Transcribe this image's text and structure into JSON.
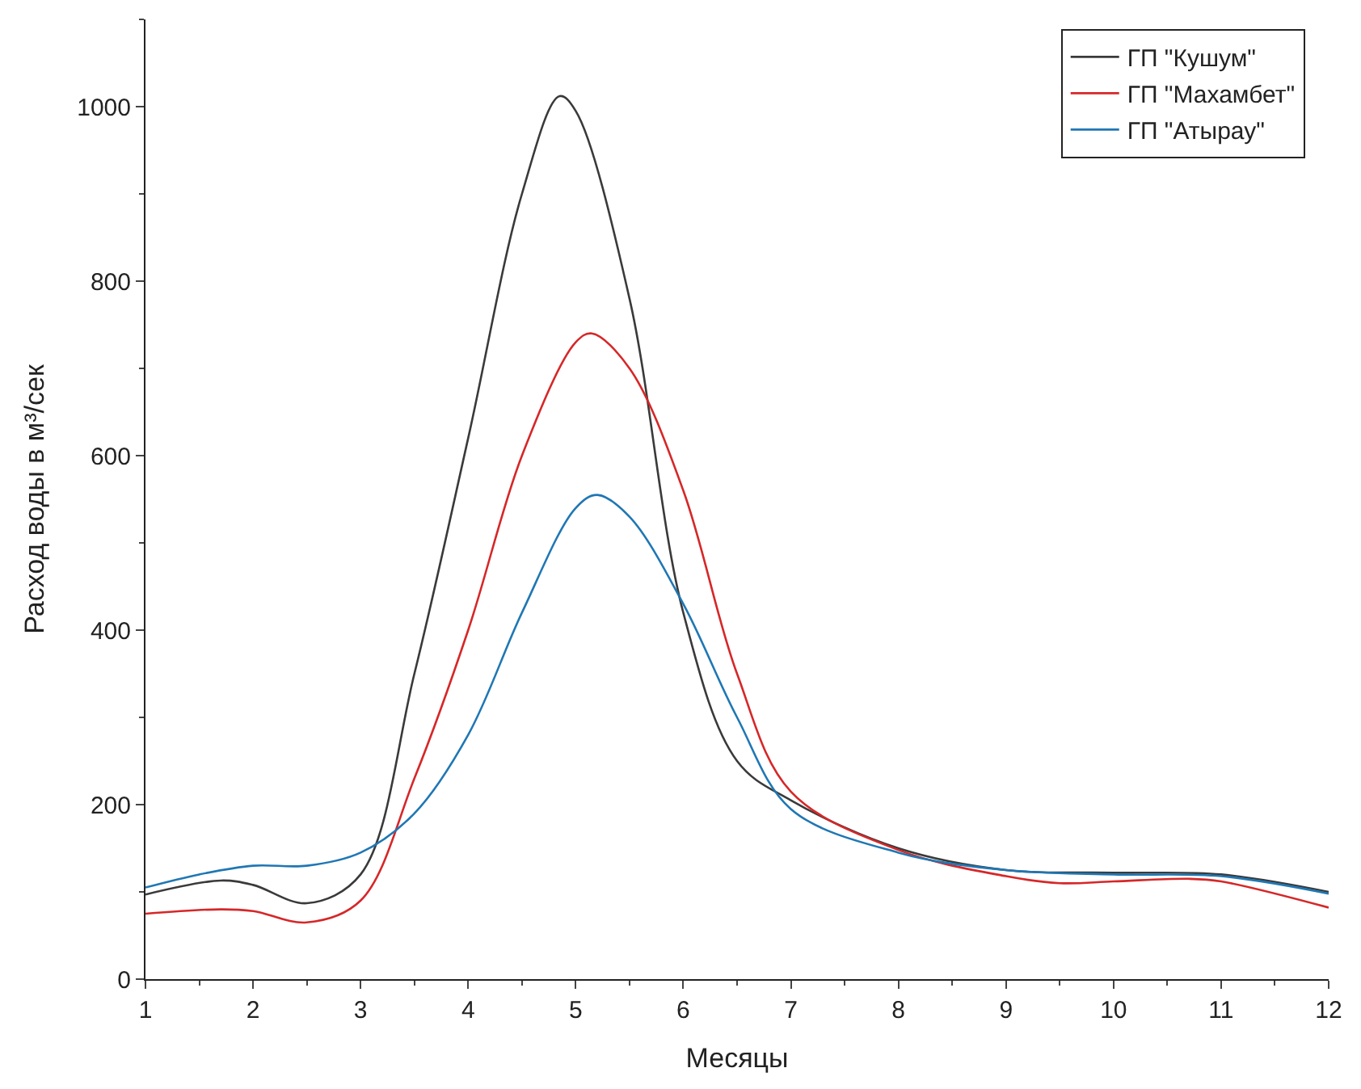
{
  "chart_data": {
    "type": "line",
    "xlabel": "Месяцы",
    "ylabel": "Расход воды в м³/сек",
    "xlim": [
      1,
      12
    ],
    "ylim": [
      0,
      1100
    ],
    "xticks": [
      1,
      2,
      3,
      4,
      5,
      6,
      7,
      8,
      9,
      10,
      11,
      12
    ],
    "yticks": [
      0,
      200,
      400,
      600,
      800,
      1000
    ],
    "legend": "top right",
    "marker": "none",
    "line_style": "solid",
    "series": [
      {
        "name": "ГП \"Кушум\"",
        "color": "#3a3a3a",
        "x": [
          1,
          1.7,
          2,
          2.5,
          3,
          3.5,
          4,
          4.5,
          4.85,
          5,
          5.5,
          6,
          6.5,
          7,
          8,
          9,
          10,
          11,
          12
        ],
        "values": [
          97,
          113,
          108,
          87,
          120,
          350,
          620,
          900,
          1012,
          995,
          780,
          420,
          250,
          205,
          150,
          125,
          122,
          120,
          100
        ]
      },
      {
        "name": "ГП \"Махамбет\"",
        "color": "#d62728",
        "x": [
          1,
          1.7,
          2,
          2.5,
          3,
          3.5,
          4,
          4.5,
          5,
          5.15,
          5.5,
          6,
          6.5,
          7,
          8,
          9,
          9.5,
          10,
          10.7,
          11,
          12
        ],
        "values": [
          75,
          80,
          78,
          65,
          90,
          230,
          400,
          600,
          730,
          740,
          700,
          560,
          350,
          215,
          148,
          118,
          110,
          112,
          115,
          112,
          82
        ]
      },
      {
        "name": "ГП \"Атырау\"",
        "color": "#1f77b4",
        "x": [
          1,
          1.5,
          2,
          2.5,
          3,
          3.5,
          4,
          4.5,
          5,
          5.2,
          5.5,
          6,
          6.5,
          7,
          8,
          9,
          10,
          11,
          12
        ],
        "values": [
          105,
          120,
          130,
          130,
          145,
          190,
          280,
          420,
          540,
          555,
          530,
          430,
          300,
          195,
          145,
          125,
          120,
          118,
          98
        ]
      }
    ]
  }
}
